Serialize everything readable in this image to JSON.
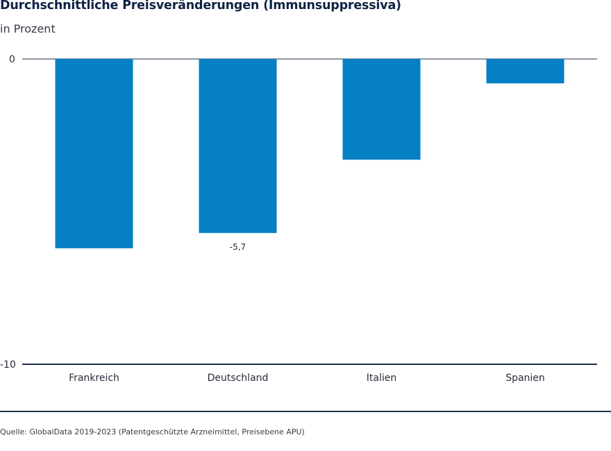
{
  "chart_data": {
    "type": "bar",
    "title": "Durchschnittliche Preisveränderungen (Immunsuppressiva)",
    "subtitle": "in Prozent",
    "categories": [
      "Frankreich",
      "Deutschland",
      "Italien",
      "Spanien"
    ],
    "values": [
      -6.2,
      -5.7,
      -3.3,
      -0.8
    ],
    "data_labels": [
      "",
      "-5,7",
      "",
      ""
    ],
    "ylim": [
      -10,
      0
    ],
    "yticks": [
      "0",
      "-10"
    ],
    "bar_color": "#0680c4",
    "axis_color": "#1f2d4a",
    "grid": false,
    "source": "Quelle: GlobalData 2019-2023 (Patentgeschützte Arzneimittel, Preisebene APU)"
  }
}
